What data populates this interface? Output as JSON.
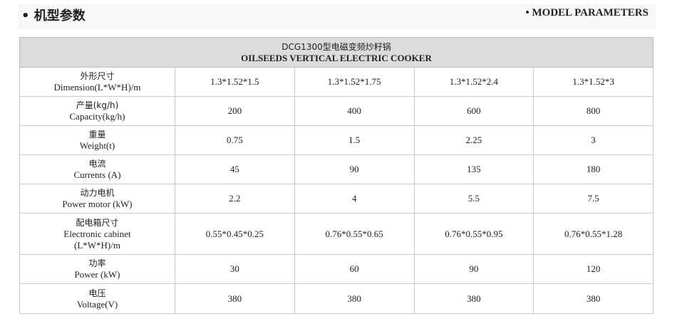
{
  "header": {
    "title_zh": "• 机型参数",
    "title_en": "• MODEL PARAMETERS"
  },
  "table": {
    "title_zh": "DCG1300型电磁变频炒籽锅",
    "title_en": "OILSEEDS VERTICAL ELECTRIC COOKER",
    "rows": [
      {
        "zh": "外形尺寸",
        "en": "Dimension(L*W*H)/m",
        "values": [
          "1.3*1.52*1.5",
          "1.3*1.52*1.75",
          "1.3*1.52*2.4",
          "1.3*1.52*3"
        ]
      },
      {
        "zh": "产量(kg/h)",
        "en": "Capacity(kg/h)",
        "values": [
          "200",
          "400",
          "600",
          "800"
        ]
      },
      {
        "zh": "重量",
        "en": "Weight(t)",
        "values": [
          "0.75",
          "1.5",
          "2.25",
          "3"
        ]
      },
      {
        "zh": "电流",
        "en": "Currents (A)",
        "values": [
          "45",
          "90",
          "135",
          "180"
        ]
      },
      {
        "zh": "动力电机",
        "en": "Power motor (kW)",
        "values": [
          "2.2",
          "4",
          "5.5",
          "7.5"
        ]
      },
      {
        "zh": "配电箱尺寸",
        "en": "Electronic cabinet",
        "en2": "(L*W*H)/m",
        "values": [
          "0.55*0.45*0.25",
          "0.76*0.55*0.65",
          "0.76*0.55*0.95",
          "0.76*0.55*1.28"
        ]
      },
      {
        "zh": "功率",
        "en": "Power (kW)",
        "values": [
          "30",
          "60",
          "90",
          "120"
        ]
      },
      {
        "zh": "电压",
        "en": "Voltage(V)",
        "values": [
          "380",
          "380",
          "380",
          "380"
        ]
      }
    ]
  }
}
